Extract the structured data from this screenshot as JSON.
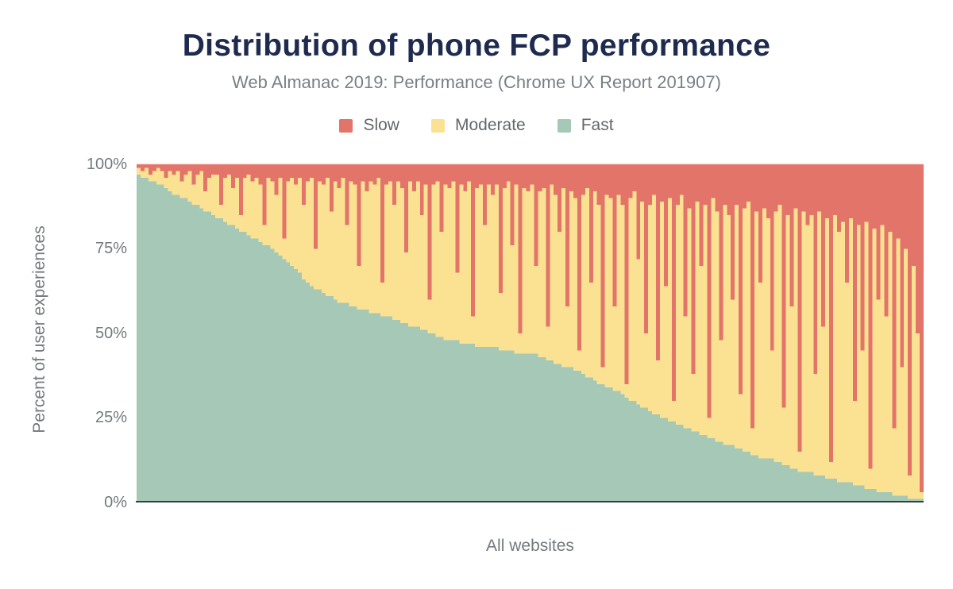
{
  "chart_data": {
    "type": "bar",
    "variant": "stacked-100-percent-distribution",
    "title": "Distribution of phone FCP performance",
    "subtitle": "Web Almanac 2019: Performance (Chrome UX Report 201907)",
    "xlabel": "All websites",
    "ylabel": "Percent of user experiences",
    "ylim": [
      0,
      100
    ],
    "y_ticks": [
      "100%",
      "75%",
      "50%",
      "25%",
      "0%"
    ],
    "grid": "top-line-only",
    "legend_position": "top-center",
    "legend": [
      {
        "label": "Slow",
        "color": "#e3746a"
      },
      {
        "label": "Moderate",
        "color": "#fbe192"
      },
      {
        "label": "Fast",
        "color": "#a6c9b7"
      }
    ],
    "stacking_note": "Each bar is one website summing to 100%. Fast on bottom, Moderate in middle, Slow on top. Moderate = 100 - Slow - Fast. Websites sorted by Fast descending.",
    "series": [
      {
        "name": "Fast",
        "color": "#a6c9b7",
        "values": [
          97,
          96,
          96,
          95,
          95,
          94,
          94,
          93,
          92,
          91,
          91,
          90,
          90,
          89,
          88,
          88,
          87,
          86,
          86,
          85,
          84,
          84,
          83,
          82,
          82,
          81,
          80,
          80,
          79,
          78,
          78,
          77,
          76,
          76,
          75,
          74,
          73,
          72,
          71,
          70,
          69,
          68,
          66,
          65,
          64,
          63,
          63,
          62,
          61,
          61,
          60,
          59,
          59,
          59,
          58,
          58,
          57,
          57,
          57,
          56,
          56,
          56,
          55,
          55,
          55,
          54,
          54,
          53,
          53,
          52,
          52,
          52,
          51,
          51,
          50,
          50,
          49,
          49,
          48,
          48,
          48,
          48,
          47,
          47,
          47,
          47,
          46,
          46,
          46,
          46,
          46,
          46,
          45,
          45,
          45,
          45,
          44,
          44,
          44,
          44,
          44,
          44,
          43,
          43,
          42,
          42,
          41,
          41,
          40,
          40,
          40,
          39,
          39,
          38,
          37,
          37,
          36,
          35,
          35,
          34,
          34,
          33,
          33,
          32,
          31,
          30,
          30,
          29,
          28,
          28,
          27,
          26,
          26,
          25,
          25,
          24,
          24,
          23,
          23,
          22,
          22,
          21,
          21,
          20,
          20,
          19,
          19,
          18,
          18,
          17,
          17,
          17,
          16,
          16,
          15,
          15,
          14,
          14,
          13,
          13,
          13,
          13,
          12,
          12,
          11,
          11,
          10,
          10,
          9,
          9,
          9,
          9,
          8,
          8,
          8,
          7,
          7,
          7,
          6,
          6,
          6,
          6,
          5,
          5,
          5,
          4,
          4,
          4,
          3,
          3,
          3,
          3,
          2,
          2,
          2,
          2,
          1,
          1,
          1,
          1
        ]
      },
      {
        "name": "Slow",
        "color": "#e3746a",
        "values": [
          1,
          2,
          1,
          3,
          2,
          1,
          2,
          4,
          2,
          3,
          2,
          5,
          3,
          2,
          6,
          3,
          2,
          8,
          4,
          3,
          3,
          12,
          4,
          3,
          7,
          4,
          15,
          4,
          3,
          5,
          4,
          6,
          18,
          4,
          5,
          9,
          4,
          22,
          5,
          4,
          6,
          4,
          12,
          5,
          4,
          25,
          5,
          6,
          4,
          14,
          5,
          7,
          4,
          18,
          5,
          6,
          30,
          5,
          8,
          5,
          6,
          4,
          35,
          6,
          5,
          12,
          5,
          7,
          26,
          5,
          8,
          5,
          15,
          6,
          40,
          6,
          5,
          20,
          6,
          7,
          5,
          32,
          6,
          8,
          5,
          45,
          7,
          6,
          18,
          6,
          9,
          6,
          38,
          7,
          5,
          24,
          6,
          50,
          7,
          8,
          6,
          30,
          8,
          7,
          48,
          6,
          9,
          20,
          7,
          42,
          8,
          10,
          55,
          9,
          7,
          35,
          8,
          12,
          60,
          9,
          10,
          42,
          9,
          12,
          65,
          10,
          8,
          28,
          11,
          50,
          12,
          9,
          58,
          11,
          36,
          10,
          70,
          12,
          9,
          45,
          13,
          62,
          11,
          30,
          12,
          75,
          10,
          14,
          52,
          12,
          15,
          40,
          12,
          68,
          13,
          11,
          78,
          14,
          35,
          13,
          16,
          55,
          14,
          12,
          72,
          15,
          42,
          13,
          85,
          14,
          18,
          15,
          62,
          14,
          48,
          16,
          88,
          15,
          20,
          17,
          35,
          16,
          70,
          18,
          55,
          17,
          90,
          19,
          40,
          18,
          45,
          20,
          78,
          22,
          60,
          25,
          92,
          30,
          50,
          97
        ]
      }
    ],
    "derived_series": {
      "name": "Moderate",
      "color": "#fbe192",
      "rule": "100 - Slow - Fast"
    }
  },
  "axis": {
    "x_line_color": "#333e48"
  }
}
